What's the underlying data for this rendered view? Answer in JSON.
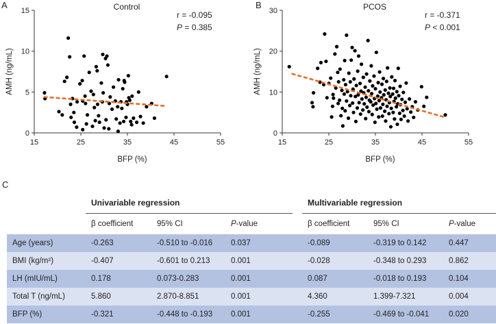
{
  "panels": {
    "a": "A",
    "b": "B",
    "c": "C"
  },
  "chart_data": [
    {
      "type": "scatter",
      "title": "Control",
      "xlabel": "BFP (%)",
      "ylabel": "AMH (ng/mL)",
      "xlim": [
        15,
        55
      ],
      "ylim": [
        0,
        15
      ],
      "xticks": [
        "15",
        "25",
        "35",
        "45",
        "55"
      ],
      "yticks": [
        "0",
        "5",
        "10",
        "15"
      ],
      "annotation": {
        "r": "r = -0.095",
        "p_label": "P",
        "p_value": " = 0.385"
      },
      "trendline": {
        "x": [
          17,
          43
        ],
        "y": [
          4.4,
          3.3
        ]
      },
      "points": [
        [
          17.2,
          4.9
        ],
        [
          17.3,
          4.2
        ],
        [
          20.3,
          2.6
        ],
        [
          21,
          2.2
        ],
        [
          21.5,
          6.3
        ],
        [
          22,
          6.8
        ],
        [
          22.3,
          11.6
        ],
        [
          22.6,
          9.3
        ],
        [
          22.8,
          3.5
        ],
        [
          22.9,
          1.9
        ],
        [
          23.2,
          4.2
        ],
        [
          23.5,
          2.5
        ],
        [
          23.6,
          1.3
        ],
        [
          24.1,
          0.7
        ],
        [
          24.2,
          3.8
        ],
        [
          24.8,
          6
        ],
        [
          25.3,
          6.4
        ],
        [
          25.4,
          3.9
        ],
        [
          25.4,
          0.4
        ],
        [
          25.7,
          9.4
        ],
        [
          25.9,
          4.5
        ],
        [
          26,
          3.6
        ],
        [
          26.2,
          1.1
        ],
        [
          26.4,
          2.2
        ],
        [
          26.8,
          7.4
        ],
        [
          27.2,
          5.1
        ],
        [
          27.5,
          0.8
        ],
        [
          27.7,
          4.7
        ],
        [
          27.9,
          3.1
        ],
        [
          28.1,
          1.5
        ],
        [
          28.3,
          8.1
        ],
        [
          28.5,
          7.6
        ],
        [
          28.6,
          3.5
        ],
        [
          28.8,
          2.1
        ],
        [
          29,
          1.3
        ],
        [
          29.4,
          6.1
        ],
        [
          29.6,
          3.8
        ],
        [
          29.7,
          9.6
        ],
        [
          29.8,
          4.9
        ],
        [
          30,
          0.6
        ],
        [
          30.3,
          9.1
        ],
        [
          30.4,
          1.6
        ],
        [
          30.6,
          9.4
        ],
        [
          30.8,
          8.3
        ],
        [
          31,
          0.5
        ],
        [
          31.1,
          3.6
        ],
        [
          31.3,
          4.4
        ],
        [
          31.7,
          2.9
        ],
        [
          32,
          5.6
        ],
        [
          32.4,
          3.9
        ],
        [
          32.6,
          1.7
        ],
        [
          32.9,
          3.2
        ],
        [
          33,
          0.2
        ],
        [
          33.1,
          6.5
        ],
        [
          33.4,
          1.2
        ],
        [
          33.6,
          3.8
        ],
        [
          33.8,
          3
        ],
        [
          34,
          5.4
        ],
        [
          34.2,
          1.4
        ],
        [
          34.3,
          6.4
        ],
        [
          34.4,
          6.2
        ],
        [
          34.7,
          1.9
        ],
        [
          34.8,
          3.8
        ],
        [
          35,
          3.5
        ],
        [
          35.2,
          7
        ],
        [
          35.3,
          4.3
        ],
        [
          35.5,
          4
        ],
        [
          35.7,
          1.4
        ],
        [
          35.9,
          1
        ],
        [
          36,
          4.5
        ],
        [
          36.3,
          1.8
        ],
        [
          37,
          1.3
        ],
        [
          37.4,
          5
        ],
        [
          37.8,
          2
        ],
        [
          38.4,
          1.2
        ],
        [
          39.1,
          3.2
        ],
        [
          40.2,
          3.6
        ],
        [
          40.8,
          1.8
        ],
        [
          43.4,
          6.9
        ]
      ]
    },
    {
      "type": "scatter",
      "title": "PCOS",
      "xlabel": "BFP (%)",
      "ylabel": "AMH (ng/mL)",
      "xlim": [
        15,
        55
      ],
      "ylim": [
        0,
        30
      ],
      "xticks": [
        "15",
        "25",
        "35",
        "45",
        "55"
      ],
      "yticks": [
        "0",
        "10",
        "20",
        "30"
      ],
      "annotation": {
        "r": "r = -0.371",
        "p_label": "P",
        "p_value": " < 0.001"
      },
      "trendline": {
        "x": [
          17,
          50
        ],
        "y": [
          14.5,
          3.8
        ]
      },
      "points": [
        [
          16.5,
          16.2
        ],
        [
          21.4,
          7.4
        ],
        [
          21.6,
          6.4
        ],
        [
          21.7,
          9.8
        ],
        [
          22.6,
          15.8
        ],
        [
          23.1,
          12.4
        ],
        [
          23.3,
          17.2
        ],
        [
          23.9,
          11.8
        ],
        [
          24.1,
          24.2
        ],
        [
          24.4,
          17.5
        ],
        [
          24.6,
          8.6
        ],
        [
          25,
          12.1
        ],
        [
          25.4,
          13.4
        ],
        [
          25.6,
          3.9
        ],
        [
          25.8,
          6.5
        ],
        [
          25.9,
          9.4
        ],
        [
          26,
          8.5
        ],
        [
          26.3,
          19.3
        ],
        [
          26.5,
          11
        ],
        [
          26.7,
          21.1
        ],
        [
          26.9,
          14.8
        ],
        [
          27,
          7.2
        ],
        [
          27.1,
          12.5
        ],
        [
          27.3,
          8
        ],
        [
          27.4,
          15.6
        ],
        [
          27.6,
          4.2
        ],
        [
          27.8,
          10.4
        ],
        [
          27.9,
          6
        ],
        [
          28,
          1.7
        ],
        [
          28.2,
          13
        ],
        [
          28.3,
          9.5
        ],
        [
          28.4,
          17.7
        ],
        [
          28.5,
          5.4
        ],
        [
          28.6,
          11.8
        ],
        [
          28.8,
          23.9
        ],
        [
          28.8,
          7.8
        ],
        [
          29,
          10.1
        ],
        [
          29.2,
          3.6
        ],
        [
          29.3,
          14.6
        ],
        [
          29.5,
          6.7
        ],
        [
          29.6,
          12.5
        ],
        [
          29.7,
          9.1
        ],
        [
          29.8,
          17.8
        ],
        [
          30,
          20.9
        ],
        [
          30.1,
          7.3
        ],
        [
          30.2,
          10.7
        ],
        [
          30.3,
          5
        ],
        [
          30.4,
          13.2
        ],
        [
          30.6,
          20.1
        ],
        [
          30.7,
          8.9
        ],
        [
          30.8,
          2.8
        ],
        [
          30.9,
          11.6
        ],
        [
          31.1,
          6.1
        ],
        [
          31.2,
          15.1
        ],
        [
          31.3,
          9.3
        ],
        [
          31.4,
          18.8
        ],
        [
          31.5,
          7.4
        ],
        [
          31.7,
          12.1
        ],
        [
          31.8,
          4.6
        ],
        [
          31.9,
          10.2
        ],
        [
          32,
          16.8
        ],
        [
          32.1,
          8.3
        ],
        [
          32.3,
          5.6
        ],
        [
          32.4,
          13.6
        ],
        [
          32.5,
          9.8
        ],
        [
          32.6,
          7.1
        ],
        [
          32.8,
          11.2
        ],
        [
          32.9,
          3.5
        ],
        [
          33,
          8.7
        ],
        [
          33.1,
          14.4
        ],
        [
          33.2,
          6.3
        ],
        [
          33.4,
          22.6
        ],
        [
          33.5,
          10.3
        ],
        [
          33.6,
          5.2
        ],
        [
          33.7,
          8
        ],
        [
          33.8,
          12.7
        ],
        [
          34,
          7.6
        ],
        [
          34.1,
          16.4
        ],
        [
          34.2,
          9.6
        ],
        [
          34.3,
          4.5
        ],
        [
          34.4,
          11.5
        ],
        [
          34.5,
          6.8
        ],
        [
          34.7,
          13.9
        ],
        [
          34.8,
          8.4
        ],
        [
          34.9,
          2.6
        ],
        [
          35,
          10.8
        ],
        [
          35.1,
          7.2
        ],
        [
          35.2,
          19.7
        ],
        [
          35.3,
          5.8
        ],
        [
          35.5,
          9
        ],
        [
          35.6,
          12.3
        ],
        [
          35.7,
          3.9
        ],
        [
          35.8,
          7.9
        ],
        [
          35.9,
          14.9
        ],
        [
          36,
          10
        ],
        [
          36.1,
          6.1
        ],
        [
          36.3,
          8.6
        ],
        [
          36.4,
          11.9
        ],
        [
          36.5,
          4.1
        ],
        [
          36.6,
          7
        ],
        [
          36.7,
          13.3
        ],
        [
          36.8,
          9.3
        ],
        [
          37,
          5.3
        ],
        [
          37.1,
          10.5
        ],
        [
          37.2,
          2.9
        ],
        [
          37.3,
          8.1
        ],
        [
          37.4,
          12.6
        ],
        [
          37.5,
          6.5
        ],
        [
          37.6,
          15.9
        ],
        [
          37.8,
          9.7
        ],
        [
          37.9,
          4.7
        ],
        [
          38,
          7.4
        ],
        [
          38.1,
          11
        ],
        [
          38.2,
          8.9
        ],
        [
          38.3,
          1.5
        ],
        [
          38.4,
          6
        ],
        [
          38.5,
          13.7
        ],
        [
          38.7,
          9.5
        ],
        [
          38.8,
          5
        ],
        [
          38.9,
          10.9
        ],
        [
          39,
          7.7
        ],
        [
          39.1,
          3.4
        ],
        [
          39.2,
          12.8
        ],
        [
          39.3,
          8.5
        ],
        [
          39.5,
          6.4
        ],
        [
          39.6,
          10.1
        ],
        [
          39.7,
          2.1
        ],
        [
          39.8,
          7.1
        ],
        [
          39.9,
          15.8
        ],
        [
          40,
          9.1
        ],
        [
          40.2,
          4.8
        ],
        [
          40.3,
          11.4
        ],
        [
          40.4,
          6.9
        ],
        [
          40.5,
          3.3
        ],
        [
          40.7,
          8.2
        ],
        [
          40.9,
          5.5
        ],
        [
          41,
          9.9
        ],
        [
          41.2,
          4.1
        ],
        [
          41.4,
          7.5
        ],
        [
          41.6,
          12.2
        ],
        [
          41.8,
          5.9
        ],
        [
          42,
          2.9
        ],
        [
          42.3,
          8.3
        ],
        [
          42.6,
          5.1
        ],
        [
          42.9,
          6.4
        ],
        [
          43.2,
          3.8
        ],
        [
          43.6,
          7.6
        ],
        [
          44.1,
          5.6
        ],
        [
          44.9,
          11.3
        ],
        [
          45.4,
          6.5
        ],
        [
          46,
          8.7
        ],
        [
          50,
          4.4
        ]
      ]
    }
  ],
  "table": {
    "groups": {
      "univariable": "Univariable regression",
      "multivariable": "Multivariable regression"
    },
    "columns": {
      "beta": "β coefficient",
      "ci": "95% CI",
      "p_prefix": "P",
      "p_suffix": "-value"
    },
    "rows": [
      {
        "label": "Age (years)",
        "u_beta": "-0.263",
        "u_ci": "-0.510 to -0.016",
        "u_p": "0.037",
        "m_beta": "-0.089",
        "m_ci": "-0.319 to 0.142",
        "m_p": "0.447"
      },
      {
        "label": "BMI (kg/m²)",
        "u_beta": "-0.407",
        "u_ci": "-0.601 to 0.213",
        "u_p": "0.001",
        "m_beta": "-0.028",
        "m_ci": "-0.348 to 0.293",
        "m_p": "0.862"
      },
      {
        "label": "LH (mIU/mL)",
        "u_beta": "0.178",
        "u_ci": "0.073-0.283",
        "u_p": "0.001",
        "m_beta": "0.087",
        "m_ci": "-0.018 to 0.193",
        "m_p": "0.104"
      },
      {
        "label": "Total T (ng/mL)",
        "u_beta": "5.860",
        "u_ci": "2.870-8.851",
        "u_p": "0.001",
        "m_beta": "4.360",
        "m_ci": "1.399-7.321",
        "m_p": "0.004"
      },
      {
        "label": "BFP (%)",
        "u_beta": "-0.321",
        "u_ci": "-0.448 to -0.193",
        "u_p": "0.001",
        "m_beta": "-0.255",
        "m_ci": "-0.469 to -0.041",
        "m_p": "0.020"
      }
    ]
  },
  "colors": {
    "trend": "#e0702b",
    "point": "#000000",
    "row_dark": "#b4c2e2",
    "row_light": "#dbe2f2"
  }
}
